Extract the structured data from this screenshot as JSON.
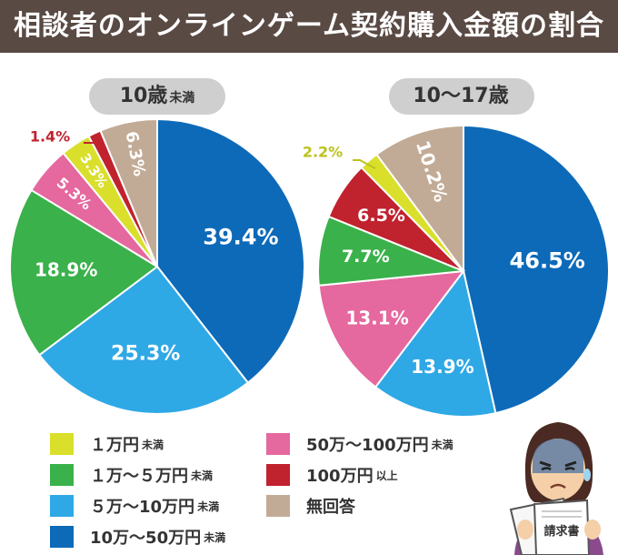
{
  "title": "相談者のオンラインゲーム契約購入金額の割合",
  "legend": [
    {
      "label": "１万円",
      "suffix": "未満",
      "color": "#d9df2b"
    },
    {
      "label": "１万～５万円",
      "suffix": "未満",
      "color": "#3ab14a"
    },
    {
      "label": "５万～10万円",
      "suffix": "未満",
      "color": "#2fa8e6"
    },
    {
      "label": "10万～50万円",
      "suffix": "未満",
      "color": "#0d6ab8"
    },
    {
      "label": "50万～100万円",
      "suffix": "未満",
      "color": "#e5689e"
    },
    {
      "label": "100万円",
      "suffix": "以上",
      "color": "#c0222e"
    },
    {
      "label": "無回答",
      "suffix": "",
      "color": "#c2ab96"
    }
  ],
  "chart_data": [
    {
      "type": "pie",
      "title_main": "10歳",
      "title_suffix": "未満",
      "start": "12 o'clock, clockwise",
      "slices": [
        {
          "category": "10万～50万円未満",
          "value": 39.4,
          "label": "39.4%",
          "color": "#0d6ab8"
        },
        {
          "category": "５万～10万円未満",
          "value": 25.3,
          "label": "25.3%",
          "color": "#2fa8e6"
        },
        {
          "category": "１万～５万円未満",
          "value": 18.9,
          "label": "18.9%",
          "color": "#3ab14a"
        },
        {
          "category": "50万～100万円未満",
          "value": 5.3,
          "label": "5.3%",
          "color": "#e5689e"
        },
        {
          "category": "１万円未満",
          "value": 3.3,
          "label": "3.3%",
          "color": "#d9df2b"
        },
        {
          "category": "100万円以上",
          "value": 1.4,
          "label": "1.4%",
          "color": "#c0222e"
        },
        {
          "category": "無回答",
          "value": 6.3,
          "label": "6.3%",
          "color": "#c2ab96"
        }
      ]
    },
    {
      "type": "pie",
      "title_main": "10～17歳",
      "title_suffix": "",
      "start": "12 o'clock, clockwise",
      "slices": [
        {
          "category": "10万～50万円未満",
          "value": 46.5,
          "label": "46.5%",
          "color": "#0d6ab8"
        },
        {
          "category": "５万～10万円未満",
          "value": 13.9,
          "label": "13.9%",
          "color": "#2fa8e6"
        },
        {
          "category": "50万～100万円未満",
          "value": 13.1,
          "label": "13.1%",
          "color": "#e5689e"
        },
        {
          "category": "１万～５万円未満",
          "value": 7.7,
          "label": "7.7%",
          "color": "#3ab14a"
        },
        {
          "category": "100万円以上",
          "value": 6.5,
          "label": "6.5%",
          "color": "#c0222e"
        },
        {
          "category": "１万円未満",
          "value": 2.2,
          "label": "2.2%",
          "color": "#d9df2b"
        },
        {
          "category": "無回答",
          "value": 10.2,
          "label": "10.2%",
          "color": "#c2ab96"
        }
      ]
    }
  ],
  "illustration": {
    "document_text": "請求書"
  }
}
